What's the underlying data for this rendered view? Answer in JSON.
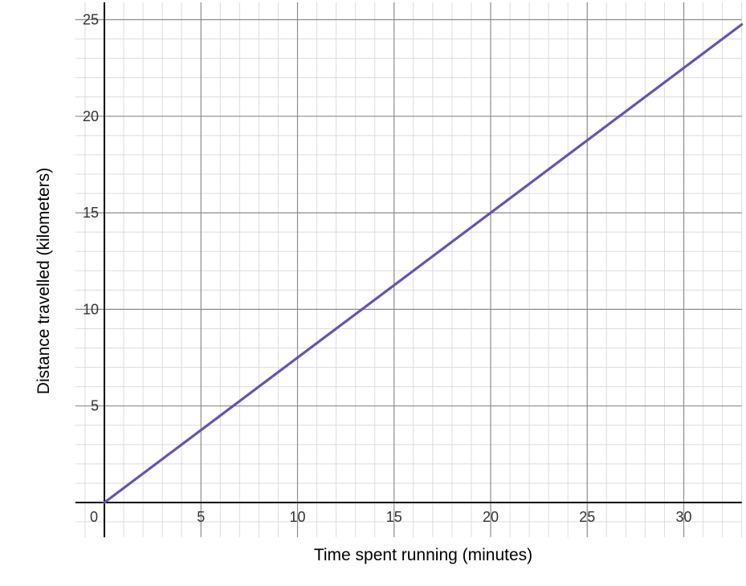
{
  "chart_data": {
    "type": "line",
    "title": "",
    "xlabel": "Time spent running (minutes)",
    "ylabel": "Distance travelled (kilometers)",
    "xlim": [
      -1.5,
      33
    ],
    "ylim": [
      -1.8,
      25.9
    ],
    "x_ticks": [
      "5",
      "10",
      "15",
      "20",
      "25",
      "30"
    ],
    "y_ticks": [
      "5",
      "10",
      "15",
      "20",
      "25"
    ],
    "origin_label": "0",
    "major_grid_step": 5,
    "minor_grid_step": 1,
    "grid": true,
    "series": [
      {
        "x": [
          0,
          33
        ],
        "y": [
          0,
          24.75
        ],
        "color": "#6a52b3"
      }
    ]
  },
  "colors": {
    "line": "#6a52b3",
    "major_grid": "#8c8c8c",
    "minor_grid": "#dcdcdc",
    "axis": "#000000"
  }
}
